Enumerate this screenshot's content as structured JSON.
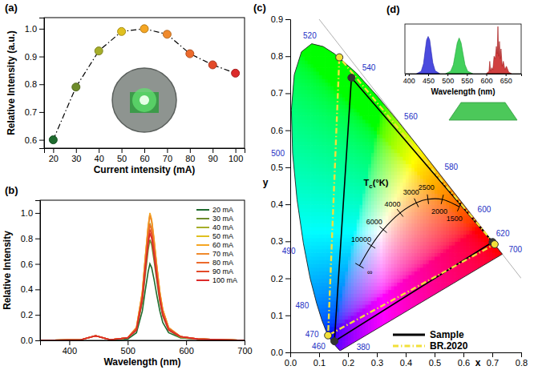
{
  "chart_data": [
    {
      "type": "line",
      "panel_label": "(a)",
      "x_label": "Current intensity (mA)",
      "y_label": "Relative Intensity (a.u.)",
      "x": [
        20,
        30,
        40,
        50,
        60,
        70,
        80,
        90,
        100
      ],
      "series": [
        {
          "values": [
            0.6,
            0.79,
            0.92,
            0.99,
            1.0,
            0.98,
            0.91,
            0.87,
            0.84
          ],
          "color": "#000000",
          "colors": [
            "#1e6b2e",
            "#6e8c2b",
            "#a6ae2a",
            "#e0c020",
            "#f5a623",
            "#f08a2c",
            "#ec6a2c",
            "#e34a2a",
            "#dc2a2a"
          ],
          "marker": "circle",
          "line_style": "dashdot"
        }
      ],
      "xlim": [
        16,
        104
      ],
      "ylim": [
        0.57,
        1.04
      ],
      "xticks": [
        20,
        30,
        40,
        50,
        60,
        70,
        80,
        90,
        100
      ],
      "yticks": [
        0.6,
        0.7,
        0.8,
        0.9,
        {
          "value": 1,
          "label": "1.0"
        }
      ]
    },
    {
      "type": "line",
      "panel_label": "(b)",
      "x_label": "Wavelength (nm)",
      "y_label": "Relative Intensity",
      "x": [
        350,
        420,
        440,
        445,
        450,
        470,
        500,
        515,
        525,
        530,
        535,
        538,
        541,
        545,
        550,
        555,
        560,
        570,
        590,
        620,
        700
      ],
      "series": [
        {
          "name": "20 mA",
          "color": "#1e6b2e",
          "values": [
            0,
            0.005,
            0.03,
            0.035,
            0.03,
            0.005,
            0.01,
            0.06,
            0.23,
            0.39,
            0.54,
            0.6,
            0.57,
            0.48,
            0.35,
            0.23,
            0.14,
            0.06,
            0.02,
            0.01,
            0
          ]
        },
        {
          "name": "30 mA",
          "color": "#6e8c2b",
          "values": [
            0,
            0.005,
            0.03,
            0.035,
            0.03,
            0.005,
            0.02,
            0.08,
            0.3,
            0.51,
            0.71,
            0.79,
            0.75,
            0.63,
            0.46,
            0.3,
            0.19,
            0.08,
            0.02,
            0.01,
            0
          ]
        },
        {
          "name": "40 mA",
          "color": "#a6ae2a",
          "values": [
            0,
            0.005,
            0.03,
            0.035,
            0.03,
            0.005,
            0.02,
            0.09,
            0.35,
            0.6,
            0.83,
            0.92,
            0.87,
            0.74,
            0.53,
            0.35,
            0.22,
            0.09,
            0.03,
            0.01,
            0
          ]
        },
        {
          "name": "50 mA",
          "color": "#e0c020",
          "values": [
            0,
            0.005,
            0.03,
            0.035,
            0.03,
            0.005,
            0.02,
            0.1,
            0.38,
            0.64,
            0.89,
            0.99,
            0.94,
            0.79,
            0.57,
            0.38,
            0.24,
            0.1,
            0.03,
            0.01,
            0
          ]
        },
        {
          "name": "60 mA",
          "color": "#f5a623",
          "values": [
            0,
            0.005,
            0.03,
            0.035,
            0.03,
            0.005,
            0.02,
            0.1,
            0.38,
            0.65,
            0.9,
            1.0,
            0.95,
            0.8,
            0.58,
            0.38,
            0.24,
            0.1,
            0.03,
            0.01,
            0
          ]
        },
        {
          "name": "70 mA",
          "color": "#f08a2c",
          "values": [
            0,
            0.005,
            0.03,
            0.035,
            0.03,
            0.005,
            0.02,
            0.1,
            0.37,
            0.64,
            0.88,
            0.98,
            0.93,
            0.78,
            0.57,
            0.37,
            0.24,
            0.1,
            0.03,
            0.01,
            0
          ]
        },
        {
          "name": "80 mA",
          "color": "#ec6a2c",
          "values": [
            0,
            0.005,
            0.03,
            0.035,
            0.03,
            0.005,
            0.02,
            0.09,
            0.35,
            0.59,
            0.82,
            0.91,
            0.86,
            0.73,
            0.53,
            0.35,
            0.22,
            0.09,
            0.03,
            0.01,
            0
          ]
        },
        {
          "name": "90 mA",
          "color": "#e34a2a",
          "values": [
            0,
            0.005,
            0.03,
            0.035,
            0.03,
            0.005,
            0.02,
            0.09,
            0.33,
            0.57,
            0.78,
            0.87,
            0.83,
            0.7,
            0.5,
            0.33,
            0.21,
            0.09,
            0.03,
            0.01,
            0
          ]
        },
        {
          "name": "100 mA",
          "color": "#dc2a2a",
          "values": [
            0,
            0.005,
            0.03,
            0.035,
            0.03,
            0.005,
            0.02,
            0.08,
            0.32,
            0.55,
            0.76,
            0.84,
            0.8,
            0.67,
            0.49,
            0.32,
            0.2,
            0.08,
            0.03,
            0.01,
            0
          ]
        }
      ],
      "xlim": [
        350,
        700
      ],
      "ylim": [
        0,
        1.1
      ],
      "xticks": [
        400,
        500,
        600,
        700
      ],
      "yticks": [
        {
          "value": 0,
          "label": "0.0"
        },
        0.2,
        0.4,
        0.6,
        0.8,
        {
          "value": 1,
          "label": "1.0"
        }
      ],
      "legend": "upper right"
    },
    {
      "type": "chromaticity",
      "panel_label": "(c)",
      "x_label": "x",
      "y_label": "y",
      "xlim": [
        0,
        0.8
      ],
      "ylim": [
        0,
        0.9
      ],
      "xticks": [
        {
          "value": 0,
          "label": "0.0"
        },
        0.1,
        0.2,
        0.3,
        0.4,
        0.5,
        0.6,
        0.7,
        0.8
      ],
      "yticks": [
        {
          "value": 0,
          "label": "0.0"
        },
        0.1,
        0.2,
        0.3,
        0.4,
        0.5,
        0.6,
        0.7,
        0.8,
        0.9
      ],
      "spectral_locus": {
        "x": [
          0.1741,
          0.1733,
          0.1714,
          0.1644,
          0.1566,
          0.144,
          0.1355,
          0.1241,
          0.1096,
          0.0913,
          0.0687,
          0.0454,
          0.0235,
          0.0082,
          0.0039,
          0.0139,
          0.0389,
          0.0743,
          0.1142,
          0.1547,
          0.2296,
          0.3016,
          0.3731,
          0.4441,
          0.5125,
          0.5752,
          0.627,
          0.6658,
          0.6915,
          0.719,
          0.73,
          0.7347
        ],
        "y": [
          0.005,
          0.0048,
          0.0051,
          0.0109,
          0.0177,
          0.0297,
          0.0399,
          0.0578,
          0.0868,
          0.1327,
          0.2007,
          0.295,
          0.4127,
          0.5384,
          0.6548,
          0.7502,
          0.812,
          0.8338,
          0.8262,
          0.8059,
          0.7543,
          0.6923,
          0.6245,
          0.5547,
          0.4866,
          0.4242,
          0.3725,
          0.334,
          0.3083,
          0.2809,
          0.27,
          0.2653
        ]
      },
      "wavelength_labels": {
        "labels": [
          380,
          460,
          470,
          480,
          490,
          500,
          520,
          540,
          560,
          580,
          600,
          620,
          700
        ],
        "x": [
          0.1741,
          0.144,
          0.1241,
          0.0913,
          0.0454,
          0.0082,
          0.0743,
          0.2296,
          0.3731,
          0.5125,
          0.627,
          0.6915,
          0.7347
        ],
        "y": [
          0.005,
          0.0297,
          0.0578,
          0.1327,
          0.295,
          0.5384,
          0.8338,
          0.7543,
          0.6245,
          0.4866,
          0.3725,
          0.3083,
          0.2653
        ],
        "color": "#1c2fc4"
      },
      "planckian_locus": {
        "x": [
          0.2399,
          0.2807,
          0.3221,
          0.3805,
          0.4369,
          0.477,
          0.5267,
          0.5857
        ],
        "y": [
          0.2342,
          0.2884,
          0.3318,
          0.3768,
          0.4041,
          0.4137,
          0.4133,
          0.3931
        ],
        "labels": [
          "∞",
          "10000",
          "6000",
          "4000",
          "3000",
          "2500",
          "2000",
          "1500"
        ]
      },
      "temperature_label": "Tc(°K)",
      "series": [
        {
          "name": "Sample",
          "color": "#000000",
          "line_style": "solid",
          "marker": "circle",
          "x": [
            0.701,
            0.212,
            0.153
          ],
          "y": [
            0.298,
            0.742,
            0.03
          ]
        },
        {
          "name": "BR.2020",
          "color": "#f2e03a",
          "line_style": "dashdot",
          "marker": "circle",
          "x": [
            0.708,
            0.17,
            0.131
          ],
          "y": [
            0.292,
            0.797,
            0.046
          ]
        }
      ],
      "legend": "lower right"
    },
    {
      "type": "area",
      "panel_label": "(d)",
      "x_label": "Wavelength (nm)",
      "xlim": [
        390,
        690
      ],
      "ylim": [
        0,
        1
      ],
      "xticks": [
        400,
        450,
        500,
        550,
        600,
        650
      ],
      "tick_labels": "x",
      "series": [
        {
          "color": "#2a2ad8",
          "x": [
            420,
            432,
            438,
            442,
            446,
            450,
            454,
            458,
            462,
            468,
            480
          ],
          "values": [
            0,
            0.05,
            0.2,
            0.45,
            0.68,
            0.75,
            0.68,
            0.45,
            0.22,
            0.06,
            0
          ]
        },
        {
          "color": "#22c840",
          "x": [
            495,
            508,
            515,
            520,
            525,
            530,
            535,
            540,
            545,
            552,
            565
          ],
          "values": [
            0,
            0.05,
            0.18,
            0.4,
            0.62,
            0.72,
            0.62,
            0.4,
            0.18,
            0.05,
            0
          ]
        },
        {
          "color": "#c81e1e",
          "x": [
            600,
            607,
            609,
            611,
            614,
            617,
            620,
            623,
            626,
            628,
            630,
            632,
            634,
            636,
            638,
            641,
            644,
            648,
            652,
            658,
            665
          ],
          "values": [
            0,
            0.05,
            0.25,
            0.05,
            0.12,
            0.08,
            0.35,
            0.3,
            0.55,
            0.4,
            0.95,
            0.35,
            0.65,
            0.3,
            0.5,
            0.15,
            0.25,
            0.08,
            0.15,
            0.03,
            0
          ]
        }
      ]
    }
  ]
}
